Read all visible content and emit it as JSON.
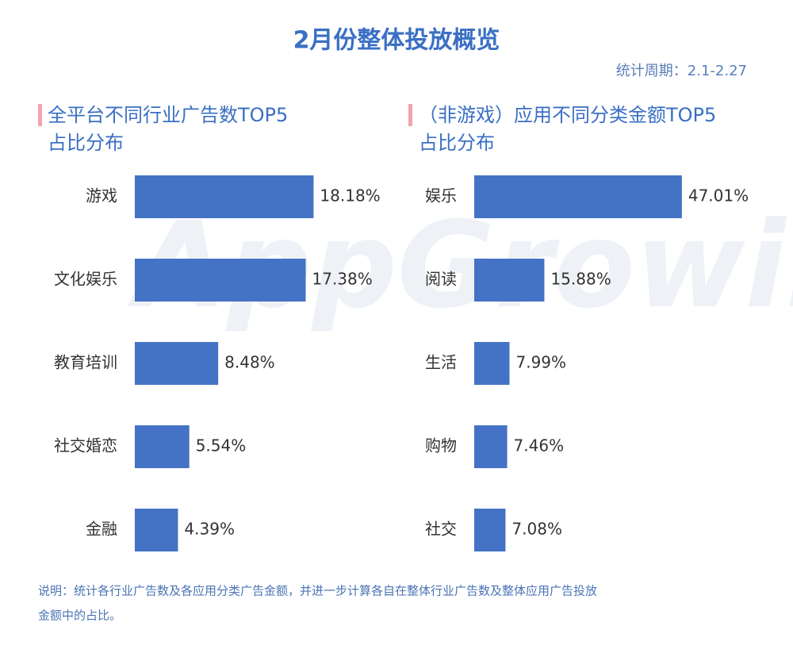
{
  "header": {
    "title": "2月份整体投放概览",
    "period": "统计周期：2.1-2.27"
  },
  "watermark": "AppGrowing",
  "chart_data": [
    {
      "type": "bar",
      "orientation": "horizontal",
      "title": [
        "全平台不同行业广告数TOP5",
        "占比分布"
      ],
      "categories": [
        "游戏",
        "文化娱乐",
        "教育培训",
        "社交婚恋",
        "金融"
      ],
      "values": [
        18.18,
        17.38,
        8.48,
        5.54,
        4.39
      ],
      "value_labels": [
        "18.18%",
        "17.38%",
        "8.48%",
        "5.54%",
        "4.39%"
      ],
      "color": "#4472c4"
    },
    {
      "type": "bar",
      "orientation": "horizontal",
      "title": [
        "（非游戏）应用不同分类金额TOP5",
        "占比分布"
      ],
      "categories": [
        "娱乐",
        "阅读",
        "生活",
        "购物",
        "社交"
      ],
      "values": [
        47.01,
        15.88,
        7.99,
        7.46,
        7.08
      ],
      "value_labels": [
        "47.01%",
        "15.88%",
        "7.99%",
        "7.46%",
        "7.08%"
      ],
      "color": "#4472c4"
    }
  ],
  "note": [
    "说明：统计各行业广告数及各应用分类广告金额，并进一步计算各自在整体行业广告数及整体应用广告投放",
    "金额中的占比。"
  ]
}
